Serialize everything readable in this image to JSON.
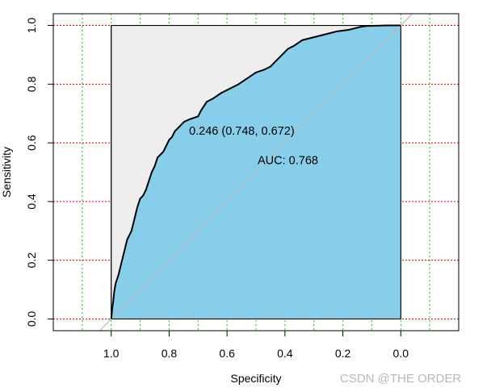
{
  "chart_data": {
    "type": "line",
    "xlabel": "Specificity",
    "ylabel": "Sensitivity",
    "xlim": [
      1.2,
      -0.2
    ],
    "ylim": [
      -0.04,
      1.04
    ],
    "x_reversed": true,
    "x_ticks": [
      "1.0",
      "0.8",
      "0.6",
      "0.4",
      "0.2",
      "0.0"
    ],
    "y_ticks": [
      "0.0",
      "0.2",
      "0.4",
      "0.6",
      "0.8",
      "1.0"
    ],
    "grid": {
      "x": "green dotted",
      "y": "red dotted"
    },
    "colors": {
      "auc_fill": "#87ceeb",
      "max_auc_fill": "#eeeeee",
      "roc_line": "#000000",
      "diagonal": "#bebebe",
      "x_grid": "#00cc00",
      "y_grid": "#cc0000"
    },
    "annotations": {
      "threshold": "0.246 (0.748, 0.672)",
      "auc": "AUC: 0.768"
    },
    "roc_points": [
      [
        1.0,
        0.0
      ],
      [
        0.998,
        0.02
      ],
      [
        0.996,
        0.04
      ],
      [
        0.993,
        0.06
      ],
      [
        0.99,
        0.09
      ],
      [
        0.985,
        0.12
      ],
      [
        0.975,
        0.15
      ],
      [
        0.965,
        0.19
      ],
      [
        0.955,
        0.23
      ],
      [
        0.945,
        0.27
      ],
      [
        0.93,
        0.3
      ],
      [
        0.92,
        0.34
      ],
      [
        0.91,
        0.38
      ],
      [
        0.9,
        0.41
      ],
      [
        0.89,
        0.42
      ],
      [
        0.88,
        0.44
      ],
      [
        0.87,
        0.47
      ],
      [
        0.86,
        0.5
      ],
      [
        0.85,
        0.52
      ],
      [
        0.84,
        0.55
      ],
      [
        0.82,
        0.57
      ],
      [
        0.81,
        0.59
      ],
      [
        0.8,
        0.61
      ],
      [
        0.79,
        0.62
      ],
      [
        0.78,
        0.64
      ],
      [
        0.76,
        0.66
      ],
      [
        0.748,
        0.672
      ],
      [
        0.73,
        0.68
      ],
      [
        0.7,
        0.69
      ],
      [
        0.69,
        0.71
      ],
      [
        0.67,
        0.74
      ],
      [
        0.65,
        0.75
      ],
      [
        0.62,
        0.77
      ],
      [
        0.6,
        0.78
      ],
      [
        0.56,
        0.8
      ],
      [
        0.53,
        0.82
      ],
      [
        0.5,
        0.84
      ],
      [
        0.47,
        0.85
      ],
      [
        0.45,
        0.86
      ],
      [
        0.43,
        0.88
      ],
      [
        0.41,
        0.9
      ],
      [
        0.39,
        0.92
      ],
      [
        0.37,
        0.93
      ],
      [
        0.34,
        0.95
      ],
      [
        0.3,
        0.96
      ],
      [
        0.26,
        0.97
      ],
      [
        0.22,
        0.98
      ],
      [
        0.18,
        0.985
      ],
      [
        0.16,
        0.99
      ],
      [
        0.14,
        0.995
      ],
      [
        0.12,
        0.998
      ],
      [
        0.05,
        1.0
      ],
      [
        0.0,
        1.0
      ]
    ]
  },
  "watermark": "CSDN @THE ORDER"
}
